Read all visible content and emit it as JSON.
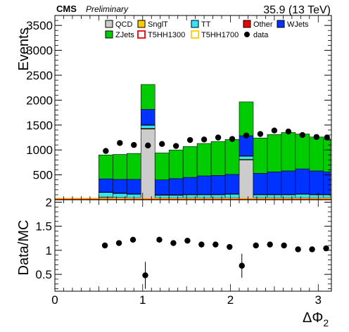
{
  "header": {
    "experiment": "CMS",
    "status": "Preliminary",
    "lumi": "35.9 (13 TeV)"
  },
  "legend": [
    {
      "label": "QCD",
      "color": "#cccccc",
      "style": "fill"
    },
    {
      "label": "SnglT",
      "color": "#ffcc00",
      "style": "fill"
    },
    {
      "label": "TT",
      "color": "#33e6ff",
      "style": "fill"
    },
    {
      "label": "Other",
      "color": "#ee0000",
      "style": "fill"
    },
    {
      "label": "WJets",
      "color": "#0033ff",
      "style": "fill"
    },
    {
      "label": "ZJets",
      "color": "#00cc00",
      "style": "fill"
    },
    {
      "label": "T5HH1300",
      "color": "#ee0000",
      "style": "outline"
    },
    {
      "label": "T5HH1700",
      "color": "#ffcc00",
      "style": "outline"
    },
    {
      "label": "data",
      "color": "#000000",
      "style": "marker"
    }
  ],
  "chart_data": [
    {
      "type": "bar",
      "stacked": true,
      "ylabel": "Events",
      "xlim": [
        0,
        3.15
      ],
      "ylim": [
        0,
        3700
      ],
      "yticks": [
        500,
        1000,
        1500,
        2000,
        2500,
        3000,
        3500
      ],
      "bin_edges": [
        0.5,
        0.66,
        0.82,
        0.98,
        1.14,
        1.3,
        1.46,
        1.62,
        1.78,
        1.94,
        2.1,
        2.26,
        2.42,
        2.58,
        2.74,
        2.9,
        3.06,
        3.14
      ],
      "series": [
        {
          "name": "QCD",
          "color": "#cccccc",
          "values": [
            40,
            30,
            25,
            1420,
            25,
            25,
            25,
            25,
            25,
            25,
            800,
            25,
            25,
            25,
            25,
            25,
            25
          ]
        },
        {
          "name": "SnglT",
          "color": "#ffcc00",
          "values": [
            15,
            15,
            15,
            15,
            15,
            15,
            15,
            15,
            15,
            15,
            15,
            15,
            15,
            15,
            15,
            15,
            15
          ]
        },
        {
          "name": "TT",
          "color": "#33e6ff",
          "values": [
            90,
            80,
            70,
            60,
            50,
            50,
            60,
            60,
            60,
            70,
            60,
            60,
            60,
            60,
            70,
            60,
            60
          ]
        },
        {
          "name": "Other",
          "color": "#ee0000",
          "values": [
            10,
            10,
            10,
            10,
            10,
            10,
            10,
            10,
            10,
            10,
            10,
            10,
            10,
            10,
            10,
            10,
            10
          ]
        },
        {
          "name": "WJets",
          "color": "#0033ff",
          "values": [
            265,
            275,
            290,
            310,
            300,
            325,
            340,
            370,
            380,
            390,
            400,
            420,
            450,
            470,
            500,
            470,
            450
          ]
        },
        {
          "name": "ZJets",
          "color": "#00cc00",
          "values": [
            480,
            500,
            520,
            500,
            540,
            575,
            620,
            650,
            680,
            700,
            680,
            710,
            750,
            770,
            700,
            680,
            660
          ]
        }
      ],
      "data": {
        "name": "data",
        "x": [
          0.58,
          0.74,
          0.9,
          1.06,
          1.22,
          1.38,
          1.54,
          1.7,
          1.86,
          2.02,
          2.18,
          2.34,
          2.5,
          2.66,
          2.82,
          2.98,
          3.1
        ],
        "y": [
          980,
          1140,
          1100,
          1090,
          1120,
          1080,
          1200,
          1210,
          1250,
          1220,
          1290,
          1320,
          1390,
          1370,
          1300,
          1260,
          1250
        ]
      }
    },
    {
      "type": "scatter",
      "ylabel": "Data/MC",
      "xlabel": "ΔΦ",
      "xlabel_subscript": "2",
      "xlim": [
        0,
        3.15
      ],
      "ylim": [
        0.15,
        2.05
      ],
      "yticks": [
        0.5,
        1,
        1.5,
        2
      ],
      "ytick_labels": [
        "0.5",
        "1",
        "1.5",
        "2"
      ],
      "xticks": [
        0,
        1,
        2,
        3
      ],
      "xtick_labels": [
        "0",
        "1",
        "2",
        "3"
      ],
      "x": [
        0.57,
        0.73,
        0.89,
        1.03,
        1.19,
        1.35,
        1.51,
        1.67,
        1.83,
        1.99,
        2.13,
        2.29,
        2.45,
        2.61,
        2.77,
        2.93,
        3.09
      ],
      "y": [
        1.1,
        1.15,
        1.22,
        0.48,
        1.22,
        1.15,
        1.2,
        1.12,
        1.12,
        1.07,
        0.68,
        1.1,
        1.12,
        1.1,
        1.02,
        1.02,
        1.04
      ],
      "yerr": [
        0.03,
        0.03,
        0.03,
        0.28,
        0.03,
        0.03,
        0.03,
        0.03,
        0.03,
        0.03,
        0.25,
        0.03,
        0.03,
        0.03,
        0.03,
        0.03,
        0.03
      ]
    }
  ]
}
